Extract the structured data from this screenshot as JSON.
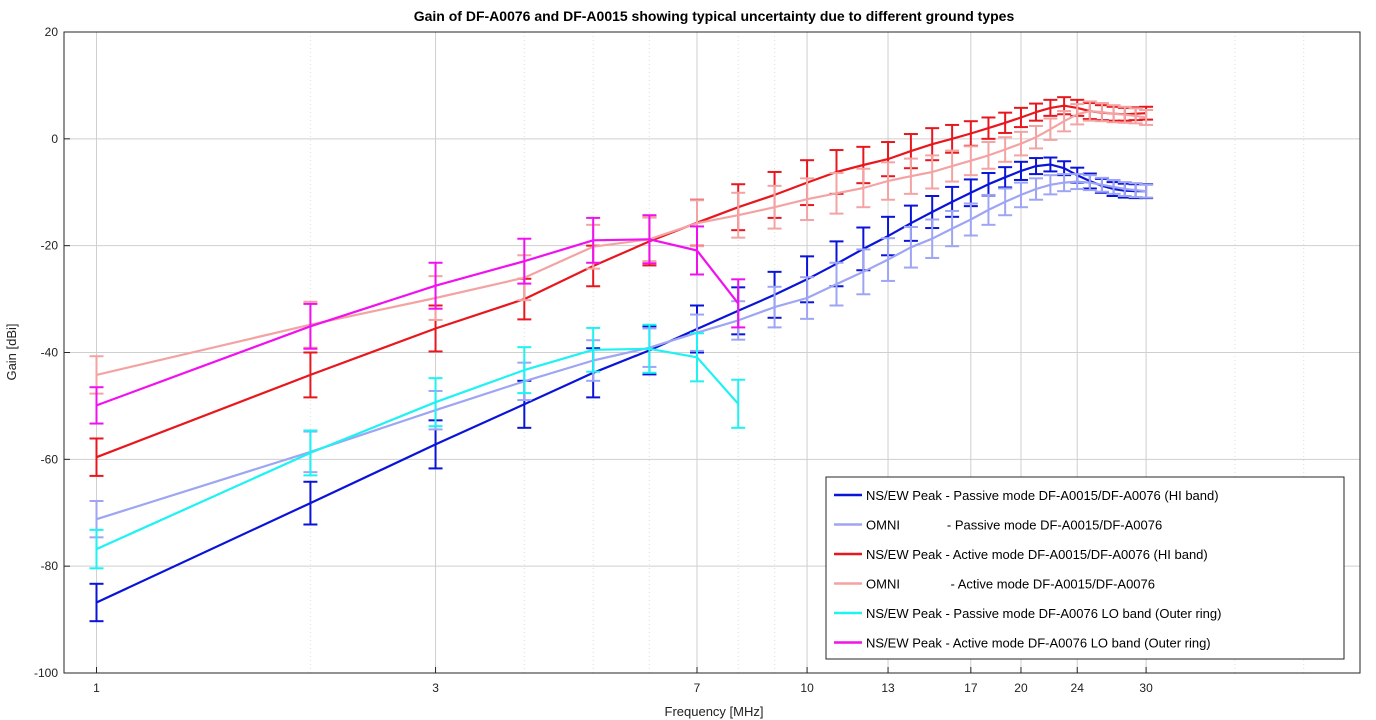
{
  "chart_data": {
    "type": "line",
    "title": "Gain of DF-A0076 and DF-A0015 showing typical uncertainty due to different ground types",
    "xlabel": "Frequency [MHz]",
    "ylabel": "Gain [dBi]",
    "x_scale": "log",
    "xlim": [
      0.9,
      60
    ],
    "ylim": [
      -100,
      20
    ],
    "grid": true,
    "legend_position": "bottom-right",
    "xticks": [
      1,
      3,
      7,
      10,
      13,
      17,
      20,
      24,
      30
    ],
    "xtick_labels": [
      "1",
      "3",
      "7",
      "10",
      "13",
      "17",
      "20",
      "24",
      "30"
    ],
    "yticks": [
      -100,
      -80,
      -60,
      -40,
      -20,
      0,
      20
    ],
    "ytick_labels": [
      "-100",
      "-80",
      "-60",
      "-40",
      "-20",
      "0",
      "20"
    ],
    "series": [
      {
        "name": "NS/EW Peak - Passive mode DF-A0015/DF-A0076 (HI band)",
        "color": "#0a14d8",
        "x": [
          1,
          2,
          3,
          4,
          5,
          6,
          7,
          8,
          9,
          10,
          11,
          12,
          13,
          14,
          15,
          16,
          17,
          18,
          19,
          20,
          21,
          22,
          23,
          24,
          25,
          26,
          27,
          28,
          29,
          30
        ],
        "y": [
          -86.8,
          -68.2,
          -57.2,
          -49.7,
          -43.8,
          -39.6,
          -35.6,
          -32.2,
          -29.2,
          -26.3,
          -23.4,
          -20.6,
          -18.2,
          -15.8,
          -13.7,
          -11.8,
          -10.1,
          -8.5,
          -7.2,
          -6.0,
          -5.1,
          -4.8,
          -5.5,
          -6.8,
          -7.9,
          -8.8,
          -9.4,
          -9.7,
          -9.8,
          -9.8
        ],
        "err": [
          3.5,
          4.0,
          4.5,
          4.4,
          4.6,
          4.5,
          4.4,
          4.4,
          4.3,
          4.3,
          4.2,
          4.0,
          3.6,
          3.3,
          3.0,
          2.8,
          2.5,
          2.1,
          1.9,
          1.7,
          1.5,
          1.3,
          1.3,
          1.4,
          1.4,
          1.3,
          1.3,
          1.3,
          1.3,
          1.3
        ]
      },
      {
        "name": "OMNI             - Passive mode DF-A0015/DF-A0076",
        "color": "#9ea5f3",
        "x": [
          1,
          2,
          3,
          4,
          5,
          6,
          7,
          8,
          9,
          10,
          11,
          12,
          13,
          14,
          15,
          16,
          17,
          18,
          19,
          20,
          21,
          22,
          23,
          24,
          25,
          26,
          27,
          28,
          29,
          30
        ],
        "y": [
          -71.2,
          -58.6,
          -50.8,
          -45.4,
          -41.5,
          -39.1,
          -36.3,
          -34.0,
          -31.5,
          -29.8,
          -27.2,
          -24.9,
          -22.6,
          -20.3,
          -18.7,
          -16.8,
          -15.1,
          -13.3,
          -11.8,
          -10.5,
          -9.4,
          -8.6,
          -8.2,
          -8.0,
          -8.2,
          -8.6,
          -9.0,
          -9.4,
          -9.6,
          -9.8
        ],
        "err": [
          3.4,
          3.8,
          3.6,
          3.5,
          3.8,
          3.6,
          3.4,
          3.6,
          3.8,
          3.9,
          4.0,
          4.2,
          4.0,
          3.8,
          3.6,
          3.3,
          3.0,
          2.8,
          2.5,
          2.3,
          2.0,
          1.8,
          1.6,
          1.4,
          1.4,
          1.3,
          1.3,
          1.3,
          1.3,
          1.2
        ]
      },
      {
        "name": "NS/EW Peak - Active mode DF-A0015/DF-A0076 (HI band)",
        "color": "#e8171d",
        "x": [
          1,
          2,
          3,
          4,
          5,
          6,
          7,
          8,
          9,
          10,
          11,
          12,
          13,
          14,
          15,
          16,
          17,
          18,
          19,
          20,
          21,
          22,
          23,
          24,
          25,
          26,
          27,
          28,
          29,
          30
        ],
        "y": [
          -59.6,
          -44.2,
          -35.5,
          -30.0,
          -23.8,
          -19.2,
          -15.7,
          -12.8,
          -10.5,
          -8.2,
          -6.2,
          -4.9,
          -3.8,
          -2.3,
          -1.0,
          0.0,
          1.0,
          2.0,
          3.0,
          4.0,
          5.0,
          5.8,
          6.2,
          5.8,
          5.2,
          4.9,
          4.7,
          4.6,
          4.7,
          4.8
        ],
        "err": [
          3.5,
          4.2,
          4.3,
          3.8,
          3.8,
          4.5,
          4.3,
          4.3,
          4.3,
          4.2,
          4.1,
          3.4,
          3.2,
          3.2,
          3.0,
          2.6,
          2.3,
          2.0,
          1.9,
          1.8,
          1.6,
          1.5,
          1.6,
          1.5,
          1.5,
          1.4,
          1.3,
          1.2,
          1.2,
          1.2
        ]
      },
      {
        "name": "OMNI              - Active mode DF-A0015/DF-A0076",
        "color": "#f4a3a3",
        "x": [
          1,
          2,
          3,
          4,
          5,
          6,
          7,
          8,
          9,
          10,
          11,
          12,
          13,
          14,
          15,
          16,
          17,
          18,
          19,
          20,
          21,
          22,
          23,
          24,
          25,
          26,
          27,
          28,
          29,
          30
        ],
        "y": [
          -44.2,
          -34.8,
          -29.8,
          -26.0,
          -20.2,
          -18.8,
          -15.8,
          -14.3,
          -12.8,
          -11.3,
          -10.2,
          -9.2,
          -7.9,
          -7.0,
          -6.2,
          -5.1,
          -4.1,
          -3.1,
          -2.0,
          -0.9,
          0.3,
          1.8,
          3.3,
          4.6,
          5.2,
          5.0,
          4.7,
          4.5,
          4.3,
          4.0
        ],
        "err": [
          3.5,
          4.3,
          4.1,
          4.2,
          4.1,
          4.1,
          4.3,
          4.2,
          4.0,
          3.9,
          3.8,
          3.6,
          3.5,
          3.3,
          3.1,
          2.9,
          2.7,
          2.5,
          2.3,
          2.2,
          2.1,
          2.0,
          1.9,
          1.9,
          1.8,
          1.7,
          1.6,
          1.5,
          1.4,
          1.4
        ]
      },
      {
        "name": "NS/EW Peak - Passive mode DF-A0076 LO band (Outer ring)",
        "color": "#1ef2f2",
        "x": [
          1,
          2,
          3,
          4,
          5,
          6,
          7,
          8
        ],
        "y": [
          -76.8,
          -58.8,
          -49.3,
          -43.3,
          -39.5,
          -39.3,
          -40.9,
          -49.6
        ],
        "err": [
          3.6,
          4.2,
          4.5,
          4.3,
          4.1,
          4.5,
          4.5,
          4.5
        ]
      },
      {
        "name": "NS/EW Peak - Active mode DF-A0076 LO band (Outer ring)",
        "color": "#f010f0",
        "x": [
          1,
          2,
          3,
          4,
          5,
          6,
          7,
          8
        ],
        "y": [
          -49.9,
          -35.1,
          -27.5,
          -22.9,
          -19.0,
          -18.8,
          -20.9,
          -30.8
        ],
        "err": [
          3.4,
          4.2,
          4.3,
          4.2,
          4.2,
          4.5,
          4.5,
          4.5
        ]
      }
    ]
  }
}
